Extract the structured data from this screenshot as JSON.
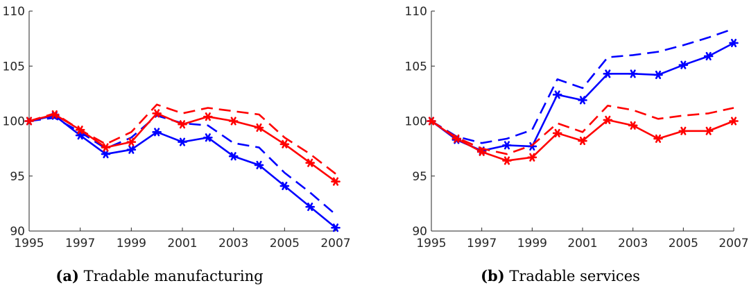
{
  "chart_data": [
    {
      "type": "line",
      "caption_label": "(a)",
      "caption_text": "Tradable manufacturing",
      "x": [
        1995,
        1996,
        1997,
        1998,
        1999,
        2000,
        2001,
        2002,
        2003,
        2004,
        2005,
        2006,
        2007
      ],
      "xticks": [
        "1995",
        "1997",
        "1999",
        "2001",
        "2003",
        "2005",
        "2007"
      ],
      "yticks": [
        "90",
        "95",
        "100",
        "105",
        "110"
      ],
      "xlim": [
        1995,
        2007
      ],
      "ylim": [
        90,
        110
      ],
      "series": [
        {
          "color": "#0000ff",
          "style": "solid-star",
          "values": [
            100,
            100.5,
            98.7,
            97.0,
            97.4,
            99.0,
            98.1,
            98.5,
            96.8,
            96.0,
            94.1,
            92.2,
            90.3
          ]
        },
        {
          "color": "#0000ff",
          "style": "dashed",
          "values": [
            100,
            100.3,
            99.0,
            97.5,
            98.5,
            100.5,
            99.8,
            99.6,
            98.0,
            97.6,
            95.3,
            93.5,
            91.5
          ]
        },
        {
          "color": "#ff0000",
          "style": "solid-star",
          "values": [
            100,
            100.6,
            99.2,
            97.6,
            98.1,
            100.7,
            99.7,
            100.4,
            100.0,
            99.4,
            97.9,
            96.2,
            94.5
          ]
        },
        {
          "color": "#ff0000",
          "style": "dashed",
          "values": [
            100,
            100.7,
            99.2,
            97.9,
            99.0,
            101.5,
            100.7,
            101.2,
            100.9,
            100.6,
            98.5,
            97.0,
            95.2
          ]
        }
      ]
    },
    {
      "type": "line",
      "caption_label": "(b)",
      "caption_text": "Tradable services",
      "x": [
        1995,
        1996,
        1997,
        1998,
        1999,
        2000,
        2001,
        2002,
        2003,
        2004,
        2005,
        2006,
        2007
      ],
      "xticks": [
        "1995",
        "1997",
        "1999",
        "2001",
        "2003",
        "2005",
        "2007"
      ],
      "yticks": [
        "90",
        "95",
        "100",
        "105",
        "110"
      ],
      "xlim": [
        1995,
        2007
      ],
      "ylim": [
        90,
        110
      ],
      "series": [
        {
          "color": "#0000ff",
          "style": "solid-star",
          "values": [
            100,
            98.3,
            97.3,
            97.8,
            97.7,
            102.4,
            101.9,
            104.3,
            104.3,
            104.2,
            105.1,
            105.9,
            107.1
          ]
        },
        {
          "color": "#0000ff",
          "style": "dashed",
          "values": [
            100,
            98.6,
            98.0,
            98.4,
            99.2,
            103.8,
            103.0,
            105.8,
            106.0,
            106.3,
            106.9,
            107.6,
            108.4
          ]
        },
        {
          "color": "#ff0000",
          "style": "solid-star",
          "values": [
            100,
            98.4,
            97.2,
            96.4,
            96.7,
            98.9,
            98.2,
            100.1,
            99.6,
            98.4,
            99.1,
            99.1,
            100.0
          ]
        },
        {
          "color": "#ff0000",
          "style": "dashed",
          "values": [
            100,
            98.5,
            97.5,
            97.0,
            97.8,
            99.8,
            99.0,
            101.4,
            101.0,
            100.2,
            100.5,
            100.7,
            101.2
          ]
        }
      ]
    }
  ]
}
